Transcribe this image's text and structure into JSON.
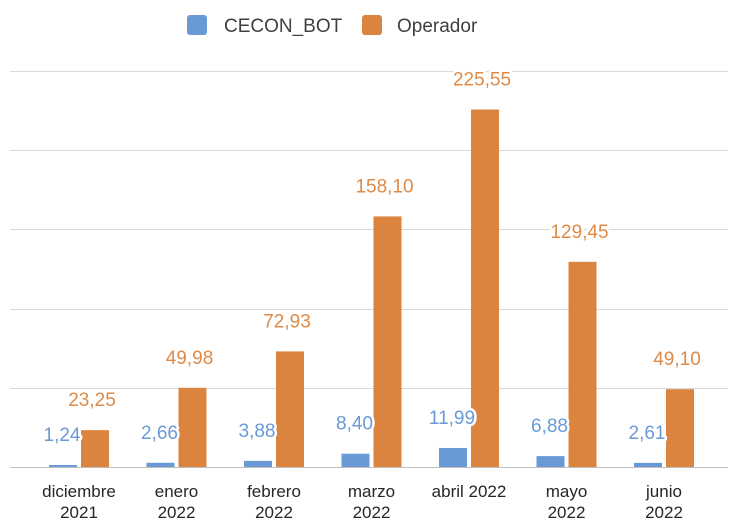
{
  "chart_data": {
    "type": "bar",
    "title": "",
    "xlabel": "",
    "ylabel": "",
    "ylim": [
      0,
      250
    ],
    "grid": true,
    "legend_position": "top-center",
    "categories": [
      [
        "diciembre",
        "2021"
      ],
      [
        "enero",
        "2022"
      ],
      [
        "febrero",
        "2022"
      ],
      [
        "marzo",
        "2022"
      ],
      [
        "abril 2022"
      ],
      [
        "mayo",
        "2022"
      ],
      [
        "junio",
        "2022"
      ]
    ],
    "series": [
      {
        "name": "CECON_BOT",
        "color": "#6a9ad6",
        "label_color": "#6a9ad6",
        "values": [
          1.24,
          2.66,
          3.88,
          8.4,
          11.99,
          6.88,
          2.61
        ],
        "labels": [
          "1,24",
          "2,66",
          "3,88",
          "8,40",
          "11,99",
          "6,88",
          "2,61"
        ]
      },
      {
        "name": "Operador",
        "color": "#db8440",
        "label_color": "#df8a46",
        "values": [
          23.25,
          49.98,
          72.93,
          158.1,
          225.55,
          129.45,
          49.1
        ],
        "labels": [
          "23,25",
          "49,98",
          "72,93",
          "158,10",
          "225,55",
          "129,45",
          "49,10"
        ]
      }
    ],
    "colors": {
      "gridline": "#d9d9d9",
      "axis": "#bfbfbf"
    }
  }
}
